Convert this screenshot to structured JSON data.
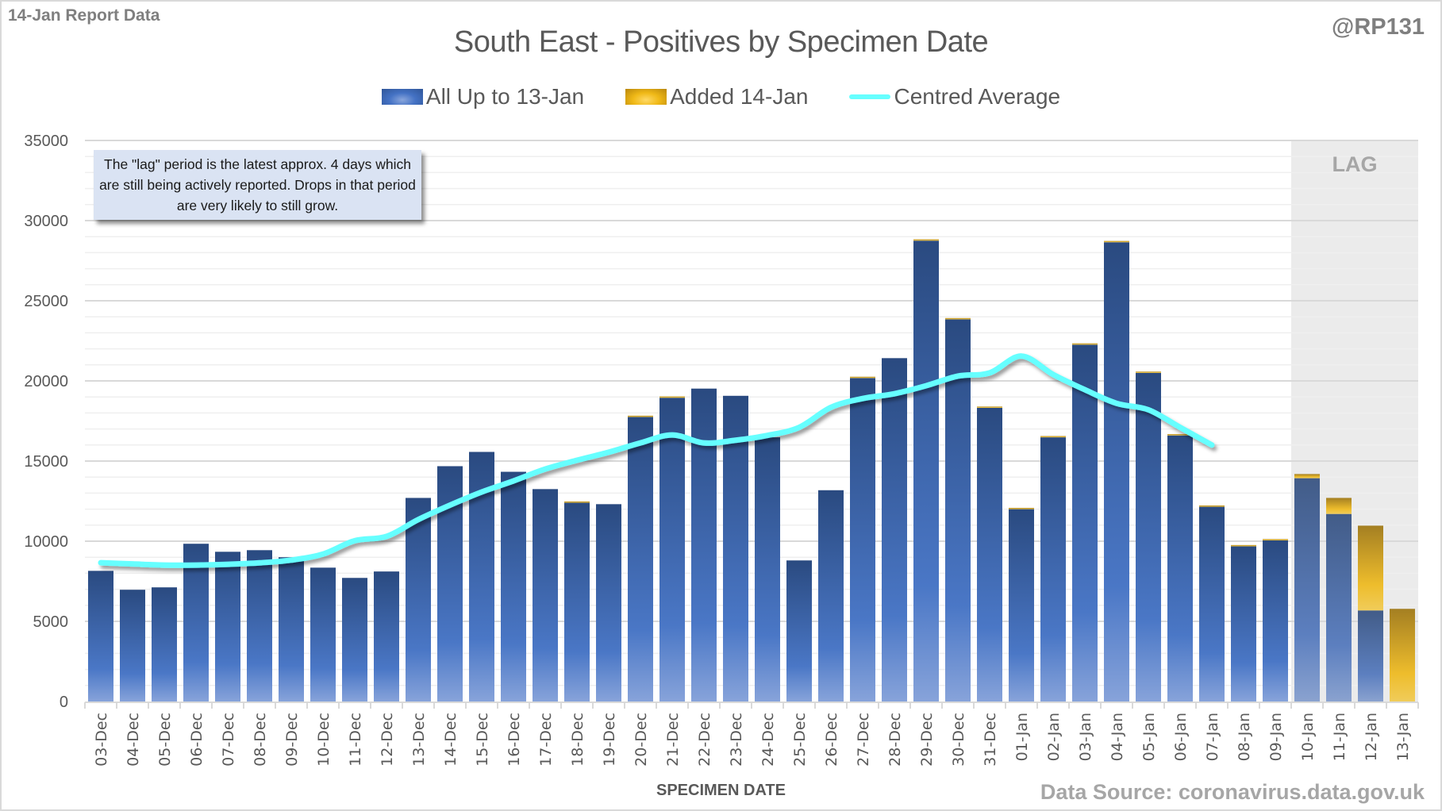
{
  "header": {
    "report_tag": "14-Jan Report Data",
    "handle": "@RP131"
  },
  "footer": {
    "source": "Data Source: coronavirus.data.gov.uk"
  },
  "annotation": {
    "note": "The \"lag\" period is the latest approx. 4 days which are still being actively reported.  Drops in that period are very likely to still grow.",
    "lag_label": "LAG"
  },
  "colors": {
    "blue": "#4472c4",
    "gold": "#f0b917",
    "line": "#66ffff",
    "lag_shade": "#ebebeb"
  },
  "chart_data": {
    "type": "bar",
    "stacked": true,
    "title": "South East - Positives by Specimen Date",
    "xlabel": "SPECIMEN DATE",
    "ylabel": "",
    "ylim": [
      0,
      35000
    ],
    "yticks": [
      0,
      5000,
      10000,
      15000,
      20000,
      25000,
      30000,
      35000
    ],
    "ytick_labels": [
      "0",
      "5000",
      "10000",
      "15000",
      "20000",
      "25000",
      "30000",
      "35000"
    ],
    "grid": true,
    "legend_position": "top",
    "lag_categories": [
      "10-Jan",
      "11-Jan",
      "12-Jan",
      "13-Jan"
    ],
    "categories": [
      "03-Dec",
      "04-Dec",
      "05-Dec",
      "06-Dec",
      "07-Dec",
      "08-Dec",
      "09-Dec",
      "10-Dec",
      "11-Dec",
      "12-Dec",
      "13-Dec",
      "14-Dec",
      "15-Dec",
      "16-Dec",
      "17-Dec",
      "18-Dec",
      "19-Dec",
      "20-Dec",
      "21-Dec",
      "22-Dec",
      "23-Dec",
      "24-Dec",
      "25-Dec",
      "26-Dec",
      "27-Dec",
      "28-Dec",
      "29-Dec",
      "30-Dec",
      "31-Dec",
      "01-Jan",
      "02-Jan",
      "03-Jan",
      "04-Jan",
      "05-Jan",
      "06-Jan",
      "07-Jan",
      "08-Jan",
      "09-Jan",
      "10-Jan",
      "11-Jan",
      "12-Jan",
      "13-Jan"
    ],
    "series": [
      {
        "name": "All Up to 13-Jan",
        "kind": "bar",
        "values": [
          8150,
          6970,
          7120,
          9840,
          9340,
          9440,
          9000,
          8350,
          7710,
          8110,
          12700,
          14680,
          15570,
          14330,
          13250,
          12400,
          12310,
          17750,
          18950,
          19520,
          19070,
          16480,
          8800,
          13180,
          20180,
          21420,
          28750,
          23840,
          18320,
          12000,
          16480,
          22260,
          28650,
          20500,
          16600,
          12150,
          9680,
          10050,
          13930,
          11700,
          5680,
          0
        ]
      },
      {
        "name": "Added 14-Jan",
        "kind": "bar",
        "values": [
          0,
          0,
          0,
          0,
          0,
          0,
          0,
          0,
          0,
          0,
          0,
          0,
          0,
          0,
          0,
          80,
          0,
          80,
          80,
          0,
          0,
          0,
          0,
          0,
          80,
          0,
          80,
          80,
          80,
          80,
          80,
          80,
          80,
          80,
          80,
          80,
          80,
          80,
          260,
          1000,
          5290,
          5780
        ]
      },
      {
        "name": "Centred Average",
        "kind": "line",
        "values": [
          8660,
          8580,
          8510,
          8510,
          8560,
          8650,
          8820,
          9200,
          10030,
          10300,
          11350,
          12250,
          13070,
          13760,
          14500,
          15050,
          15550,
          16130,
          16630,
          16130,
          16300,
          16600,
          17100,
          18350,
          18900,
          19200,
          19700,
          20300,
          20500,
          21550,
          20400,
          19450,
          18600,
          18200,
          17100,
          16000,
          null,
          null,
          null,
          null,
          null,
          null
        ]
      }
    ]
  }
}
